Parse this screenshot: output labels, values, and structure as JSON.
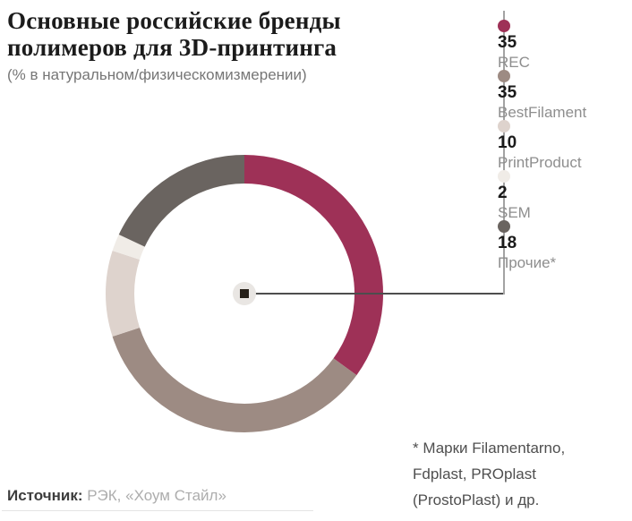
{
  "header": {
    "title": "Основные российские бренды полимеров для 3D-принтинга",
    "subtitle": "(% в натуральном/физическомизмерении)"
  },
  "chart_data": {
    "type": "pie",
    "variant": "donut",
    "title": "Основные российские бренды полимеров для 3D-принтинга",
    "subtitle": "(% в натуральном/физическомизмерении)",
    "unit": "%",
    "start_angle_deg": 0,
    "direction": "clockwise",
    "legend_position": "right",
    "segments": [
      {
        "label": "REC",
        "value": 35,
        "color": "#9e3157"
      },
      {
        "label": "BestFilament",
        "value": 35,
        "color": "#9d8b83"
      },
      {
        "label": "PrintProduct",
        "value": 10,
        "color": "#ded3cd"
      },
      {
        "label": "SEM",
        "value": 2,
        "color": "#f0ece7"
      },
      {
        "label": "Прочие*",
        "value": 18,
        "color": "#6a6460"
      }
    ]
  },
  "footnote": {
    "lines": {
      "0": "* Марки Filamentarno,",
      "1": "Fdplast, PROplast",
      "2": "(ProstoPlast) и др."
    }
  },
  "source": {
    "label": "Источник:",
    "value": " РЭК, «Хоум Стайл»"
  }
}
